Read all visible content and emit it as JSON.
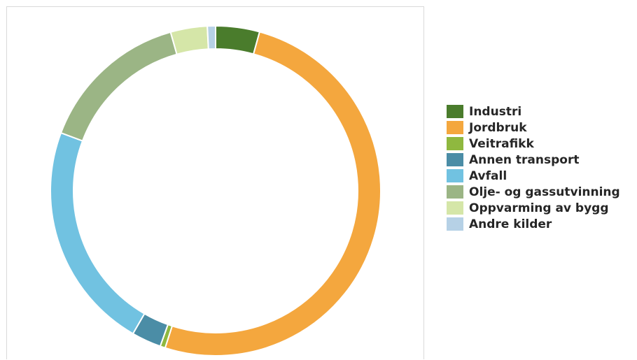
{
  "chart_data": {
    "type": "pie",
    "donut": true,
    "title": "",
    "series": [
      {
        "name": "Industri",
        "value": 4.3,
        "color": "#4a7c2c"
      },
      {
        "name": "Jordbruk",
        "value": 50.7,
        "color": "#f4a73e"
      },
      {
        "name": "Veitrafikk",
        "value": 0.5,
        "color": "#8fb83f"
      },
      {
        "name": "Annen transport",
        "value": 2.9,
        "color": "#4b8da6"
      },
      {
        "name": "Avfall",
        "value": 22.4,
        "color": "#71c2e1"
      },
      {
        "name": "Olje- og gassutvinning",
        "value": 14.9,
        "color": "#9bb585"
      },
      {
        "name": "Oppvarming av bygg",
        "value": 3.6,
        "color": "#d5e6a8"
      },
      {
        "name": "Andre kilder",
        "value": 0.8,
        "color": "#b6d1e6"
      }
    ],
    "legend": {
      "position": "right"
    }
  }
}
